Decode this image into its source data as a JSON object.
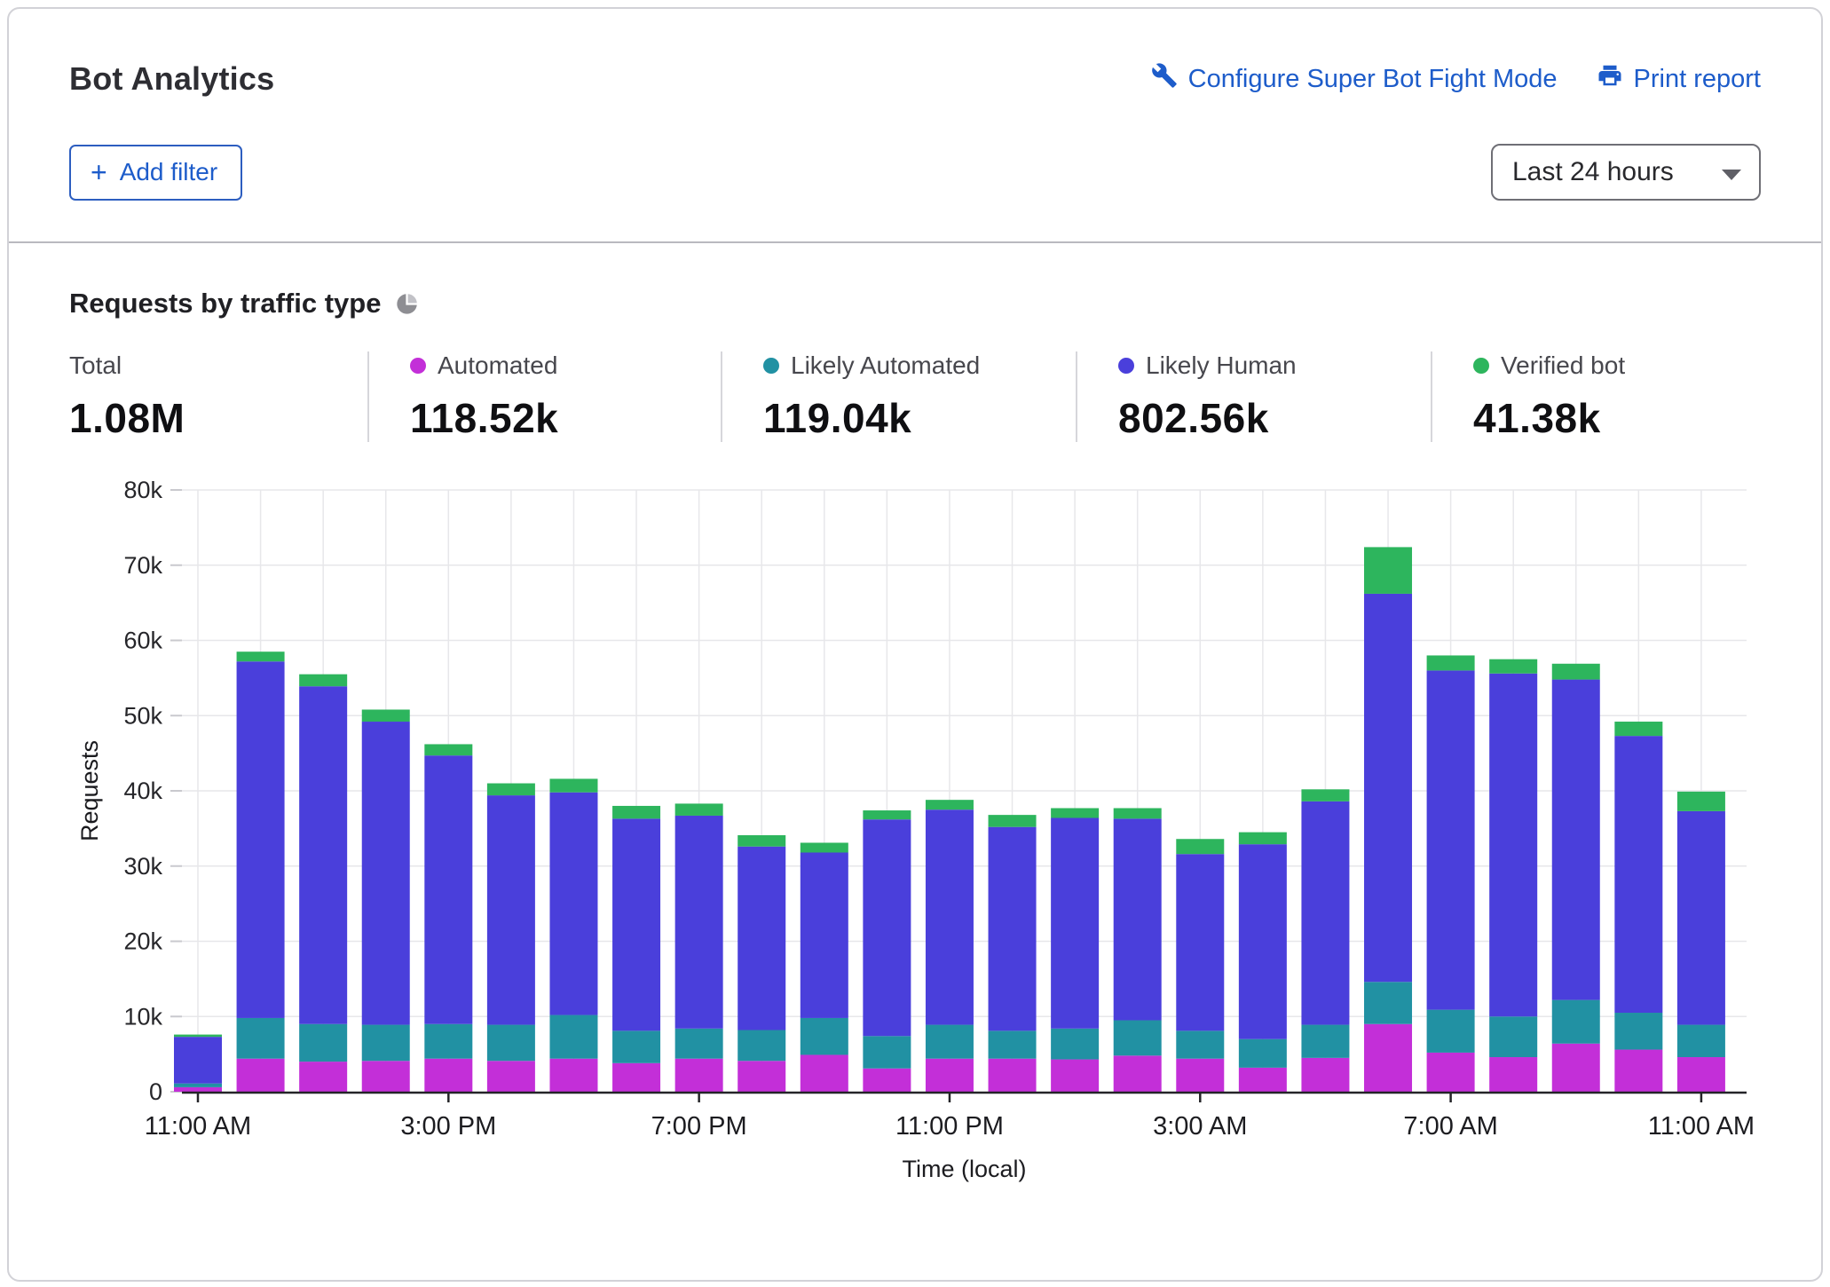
{
  "header": {
    "title": "Bot Analytics",
    "configure_link": "Configure Super Bot Fight Mode",
    "print_link": "Print report",
    "add_filter_plus": "+",
    "add_filter_label": "Add filter",
    "time_range_selected": "Last 24 hours",
    "link_color": "#1d5cca"
  },
  "section": {
    "title": "Requests by traffic type"
  },
  "stats": [
    {
      "label": "Total",
      "value": "1.08M",
      "color": null
    },
    {
      "label": "Automated",
      "value": "118.52k",
      "color": "#c32fd8"
    },
    {
      "label": "Likely Automated",
      "value": "119.04k",
      "color": "#2191a3"
    },
    {
      "label": "Likely Human",
      "value": "802.56k",
      "color": "#4a3fdb"
    },
    {
      "label": "Verified bot",
      "value": "41.38k",
      "color": "#2db55d"
    }
  ],
  "chart_data": {
    "type": "bar",
    "stacked": true,
    "bar_count": 25,
    "title": "Requests by traffic type",
    "xlabel": "Time (local)",
    "ylabel": "Requests",
    "ylim": [
      0,
      80000
    ],
    "grid": true,
    "ytick_labels": [
      "0",
      "10k",
      "20k",
      "30k",
      "40k",
      "50k",
      "60k",
      "70k",
      "80k"
    ],
    "xtick_labels": [
      "11:00 AM",
      "3:00 PM",
      "7:00 PM",
      "11:00 PM",
      "3:00 AM",
      "7:00 AM",
      "11:00 AM"
    ],
    "xtick_positions": [
      0,
      4,
      8,
      12,
      16,
      20,
      24
    ],
    "units": "thousands of requests per hourly bar",
    "series": [
      {
        "name": "Automated",
        "color": "#c32fd8",
        "values": [
          0.6,
          4.4,
          4.0,
          4.1,
          4.4,
          4.1,
          4.4,
          3.8,
          4.4,
          4.1,
          4.9,
          3.1,
          4.4,
          4.4,
          4.3,
          4.8,
          4.4,
          3.2,
          4.5,
          9.0,
          5.2,
          4.6,
          6.4,
          5.6,
          4.6
        ]
      },
      {
        "name": "Likely Automated",
        "color": "#2191a3",
        "values": [
          0.5,
          5.4,
          5.0,
          4.8,
          4.6,
          4.8,
          5.8,
          4.3,
          4.0,
          4.1,
          4.9,
          4.3,
          4.5,
          3.7,
          4.1,
          4.7,
          3.7,
          3.8,
          4.4,
          5.6,
          5.7,
          5.4,
          5.8,
          4.9,
          4.3
        ]
      },
      {
        "name": "Likely Human",
        "color": "#4a3fdb",
        "values": [
          6.2,
          47.4,
          44.9,
          40.3,
          35.7,
          30.5,
          29.6,
          28.2,
          28.3,
          24.4,
          22.0,
          28.8,
          28.6,
          27.1,
          28.0,
          26.8,
          23.5,
          25.9,
          29.7,
          51.6,
          45.1,
          45.6,
          42.6,
          36.8,
          28.4
        ]
      },
      {
        "name": "Verified bot",
        "color": "#2db55d",
        "values": [
          0.3,
          1.3,
          1.6,
          1.6,
          1.5,
          1.6,
          1.8,
          1.7,
          1.6,
          1.5,
          1.3,
          1.2,
          1.3,
          1.6,
          1.3,
          1.4,
          2.0,
          1.6,
          1.6,
          6.2,
          2.0,
          1.9,
          2.1,
          1.9,
          2.6
        ]
      }
    ]
  }
}
